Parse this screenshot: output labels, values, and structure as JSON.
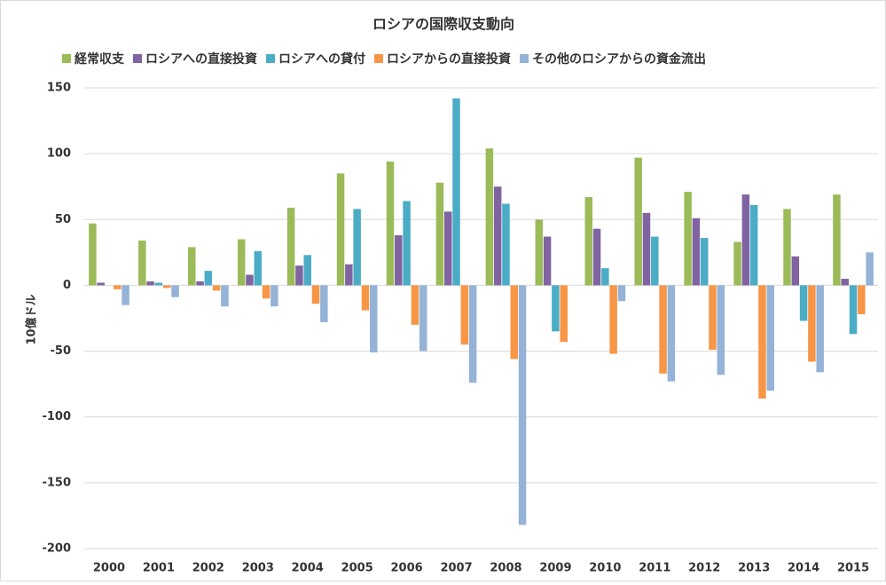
{
  "chart_data": {
    "type": "bar",
    "title": "ロシアの国際収支動向",
    "y_axis_label": "10億ドル",
    "categories": [
      "2000",
      "2001",
      "2002",
      "2003",
      "2004",
      "2005",
      "2006",
      "2007",
      "2008",
      "2009",
      "2010",
      "2011",
      "2012",
      "2013",
      "2014",
      "2015"
    ],
    "series": [
      {
        "name": "経常収支",
        "color": "#9bbb59",
        "values": [
          47,
          34,
          29,
          35,
          59,
          85,
          94,
          78,
          104,
          50,
          67,
          97,
          71,
          33,
          58,
          69
        ]
      },
      {
        "name": "ロシアへの直接投資",
        "color": "#8064a2",
        "values": [
          2,
          3,
          3,
          8,
          15,
          16,
          38,
          56,
          75,
          37,
          43,
          55,
          51,
          69,
          22,
          5
        ]
      },
      {
        "name": "ロシアへの貸付",
        "color": "#4bacc6",
        "values": [
          0,
          2,
          11,
          26,
          23,
          58,
          64,
          142,
          62,
          -35,
          13,
          37,
          36,
          61,
          -27,
          -37
        ]
      },
      {
        "name": "ロシアからの直接投資",
        "color": "#f79646",
        "values": [
          -3,
          -2,
          -4,
          -10,
          -14,
          -19,
          -30,
          -45,
          -56,
          -43,
          -52,
          -67,
          -49,
          -86,
          -58,
          -22
        ]
      },
      {
        "name": "その他のロシアからの資金流出",
        "color": "#95b3d7",
        "values": [
          -15,
          -9,
          -16,
          -16,
          -28,
          -51,
          -50,
          -74,
          -182,
          0,
          -12,
          -73,
          -68,
          -80,
          -66,
          25
        ]
      }
    ],
    "ylim": [
      -200,
      150
    ],
    "yticks": [
      -200,
      -150,
      -100,
      -50,
      0,
      50,
      100,
      150
    ],
    "grid": true,
    "legend": "top"
  }
}
